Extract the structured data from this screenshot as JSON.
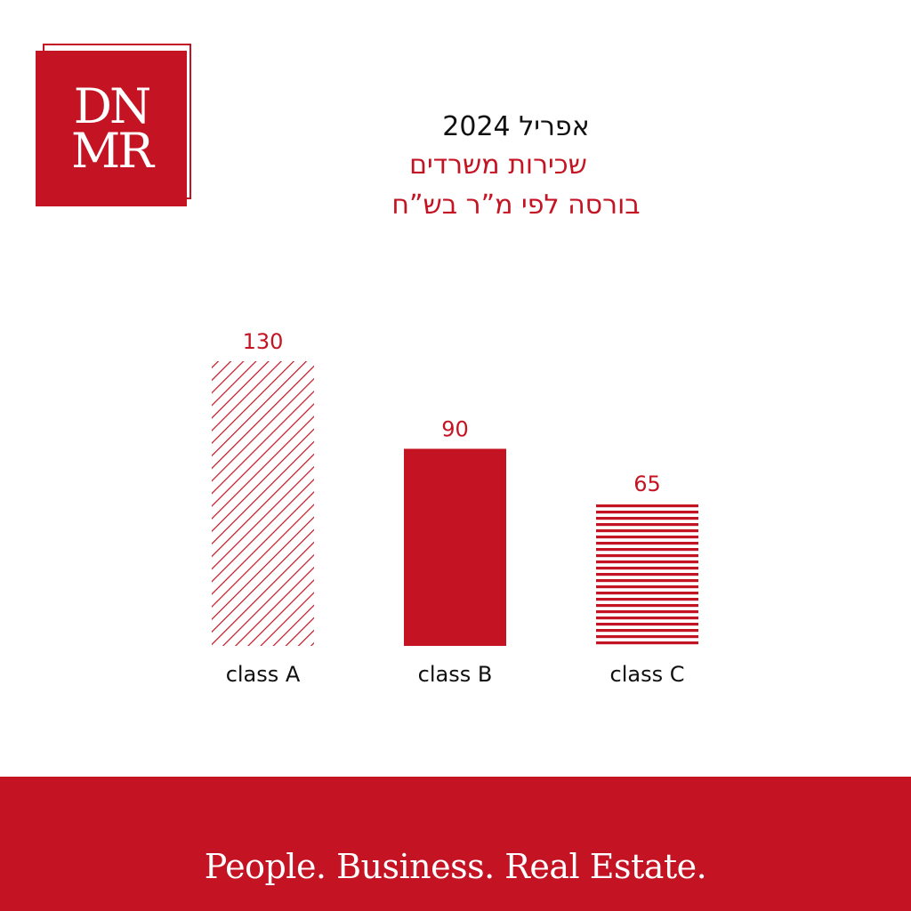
{
  "logo": {
    "line1": "DN",
    "line2": "MR"
  },
  "header": {
    "date": "אפריל 2024",
    "title": "שכירות משרדים",
    "subtitle": "בורסה לפי מ”ר בש”ח"
  },
  "chart_data": {
    "type": "bar",
    "categories": [
      "class A",
      "class B",
      "class C"
    ],
    "values": [
      130,
      90,
      65
    ],
    "value_labels": [
      "130",
      "90",
      "65"
    ],
    "bar_styles": [
      "diagonal-hatch",
      "solid",
      "horizontal-stripes"
    ],
    "color": "#c41424",
    "title": "שכירות משרדים",
    "subtitle": "בורסה לפי מ”ר בש”ח",
    "xlabel": "",
    "ylabel": "",
    "ylim": [
      0,
      130
    ],
    "grid": false,
    "legend": "none"
  },
  "footer": {
    "tagline": "People. Business. Real Estate."
  },
  "colors": {
    "brand": "#c41424",
    "text": "#111111",
    "background": "#ffffff"
  }
}
